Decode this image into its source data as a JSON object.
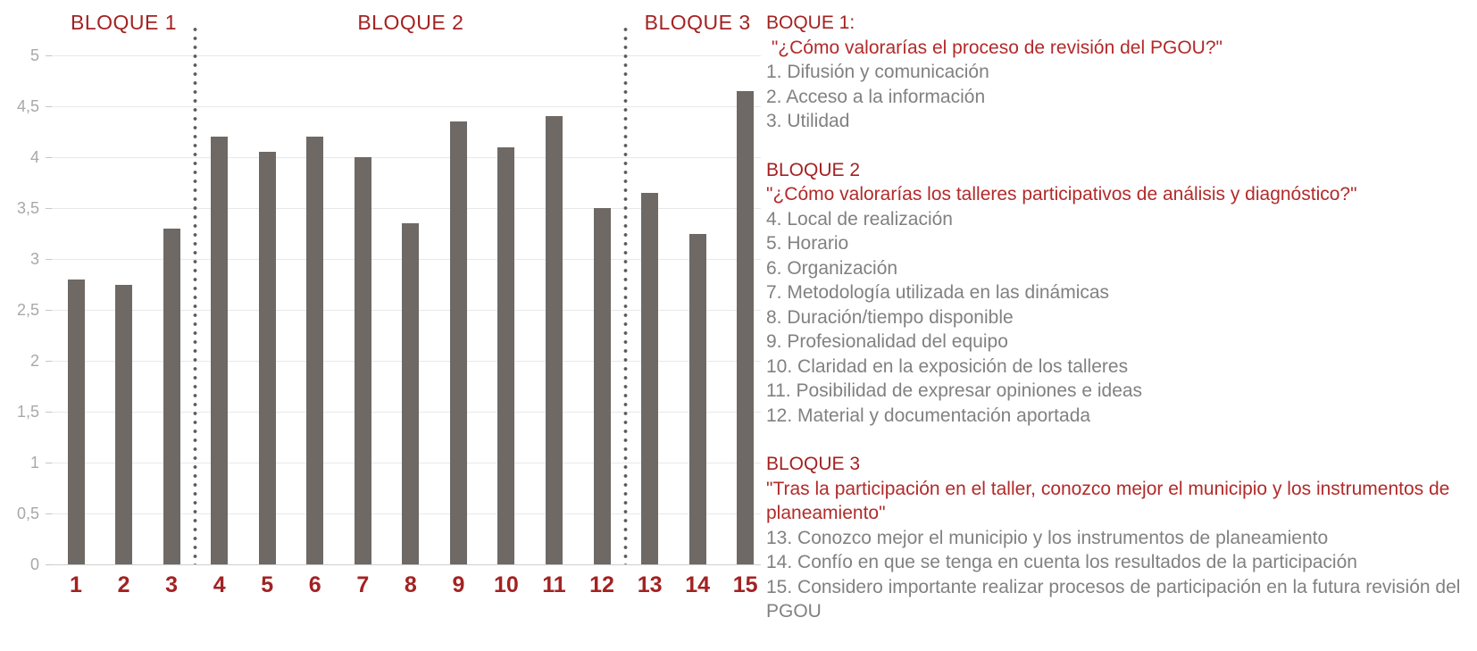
{
  "chart_data": {
    "type": "bar",
    "title": "",
    "xlabel": "",
    "ylabel": "",
    "categories": [
      "1",
      "2",
      "3",
      "4",
      "5",
      "6",
      "7",
      "8",
      "9",
      "10",
      "11",
      "12",
      "13",
      "14",
      "15"
    ],
    "values": [
      2.8,
      2.75,
      3.3,
      4.2,
      4.05,
      4.2,
      4.0,
      3.35,
      4.35,
      4.1,
      4.4,
      3.5,
      3.65,
      3.25,
      4.65
    ],
    "ylim": [
      0,
      5
    ],
    "ytick_step": 0.5,
    "ytick_labels": [
      "0",
      "0,5",
      "1",
      "1,5",
      "2",
      "2,5",
      "3",
      "3,5",
      "4",
      "4,5",
      "5"
    ],
    "grid": true,
    "legend_position": "none",
    "bar_color": "#6E6965",
    "blocks": [
      {
        "label": "BLOQUE 1",
        "from": 1,
        "to": 3
      },
      {
        "label": "BLOQUE 2",
        "from": 4,
        "to": 12
      },
      {
        "label": "BLOQUE 3",
        "from": 13,
        "to": 15
      }
    ],
    "dividers_after_category": [
      3,
      12
    ]
  },
  "legend": {
    "sections": [
      {
        "header": "BOQUE 1:",
        "quote": " \"¿Cómo valorarías el proceso de revisión del PGOU?\"",
        "items": [
          "1. Difusión y comunicación",
          "2. Acceso a la información",
          "3. Utilidad"
        ]
      },
      {
        "header": "BLOQUE 2",
        "quote": "\"¿Cómo valorarías los talleres participativos de análisis y diagnóstico?\"",
        "items": [
          "4. Local de realización",
          "5. Horario",
          "6. Organización",
          "7. Metodología utilizada en las dinámicas",
          "8. Duración/tiempo disponible",
          "9. Profesionalidad del equipo",
          "10. Claridad en la exposición de los talleres",
          "11. Posibilidad de expresar opiniones e ideas",
          "12. Material y documentación aportada"
        ]
      },
      {
        "header": "BLOQUE 3",
        "quote": "\"Tras la participación en el taller, conozco mejor el municipio y los instrumentos de planeamiento\"",
        "items": [
          "13. Conozco mejor el municipio y los instrumentos de planeamiento",
          "14. Confío en que se tenga en cuenta los resultados de la participación",
          "15. Considero importante realizar procesos de participación en la futura revisión del PGOU"
        ]
      }
    ]
  },
  "colors": {
    "bar": "#6E6965",
    "red_header": "#A32222",
    "red_quote": "#B22A2A",
    "item_gray": "#818181",
    "axis_label_gray": "#A8A8A8",
    "gridline": "#E8E8E8",
    "divider_dot": "#5E5A57"
  }
}
